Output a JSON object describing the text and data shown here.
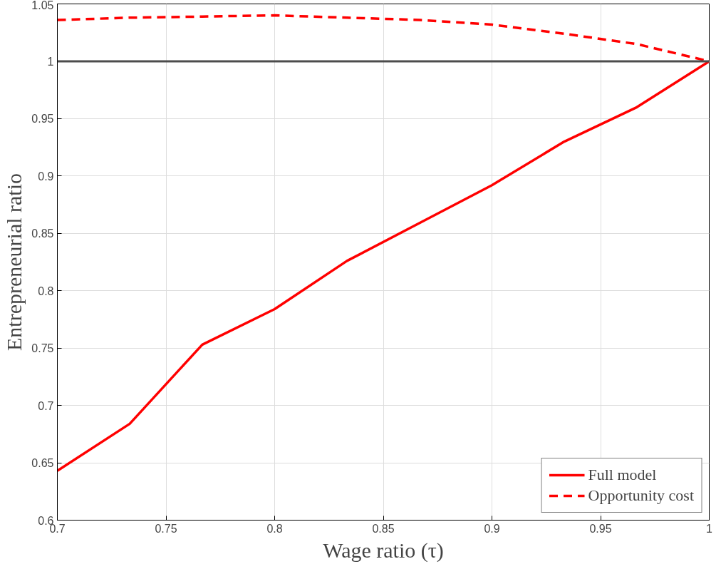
{
  "chart_data": {
    "type": "line",
    "xlabel": "Wage ratio (τ)",
    "ylabel": "Entrepreneurial ratio",
    "x": [
      0.7,
      0.7333,
      0.7667,
      0.8,
      0.8333,
      0.8667,
      0.9,
      0.9333,
      0.9667,
      1.0
    ],
    "series": [
      {
        "name": "Full model",
        "color": "#ff0000",
        "line_style": "solid",
        "values": [
          0.643,
          0.684,
          0.753,
          0.784,
          0.826,
          0.859,
          0.892,
          0.93,
          0.96,
          1.0
        ]
      },
      {
        "name": "Opportunity cost",
        "color": "#ff0000",
        "line_style": "dashed",
        "values": [
          1.036,
          1.038,
          1.039,
          1.04,
          1.038,
          1.036,
          1.032,
          1.024,
          1.015,
          1.0
        ]
      }
    ],
    "xlim": [
      0.7,
      1
    ],
    "xticks": [
      0.7,
      0.75,
      0.8,
      0.85,
      0.9,
      0.95,
      1
    ],
    "ylim": [
      0.6,
      1.05
    ],
    "yticks": [
      0.6,
      0.65,
      0.7,
      0.75,
      0.8,
      0.85,
      0.9,
      0.95,
      1,
      1.05
    ],
    "ref_lines": [
      {
        "axis": "y",
        "value": 1,
        "color": "#4d4d4d"
      }
    ],
    "grid": true,
    "legend": "bottom right",
    "marker": "none"
  }
}
